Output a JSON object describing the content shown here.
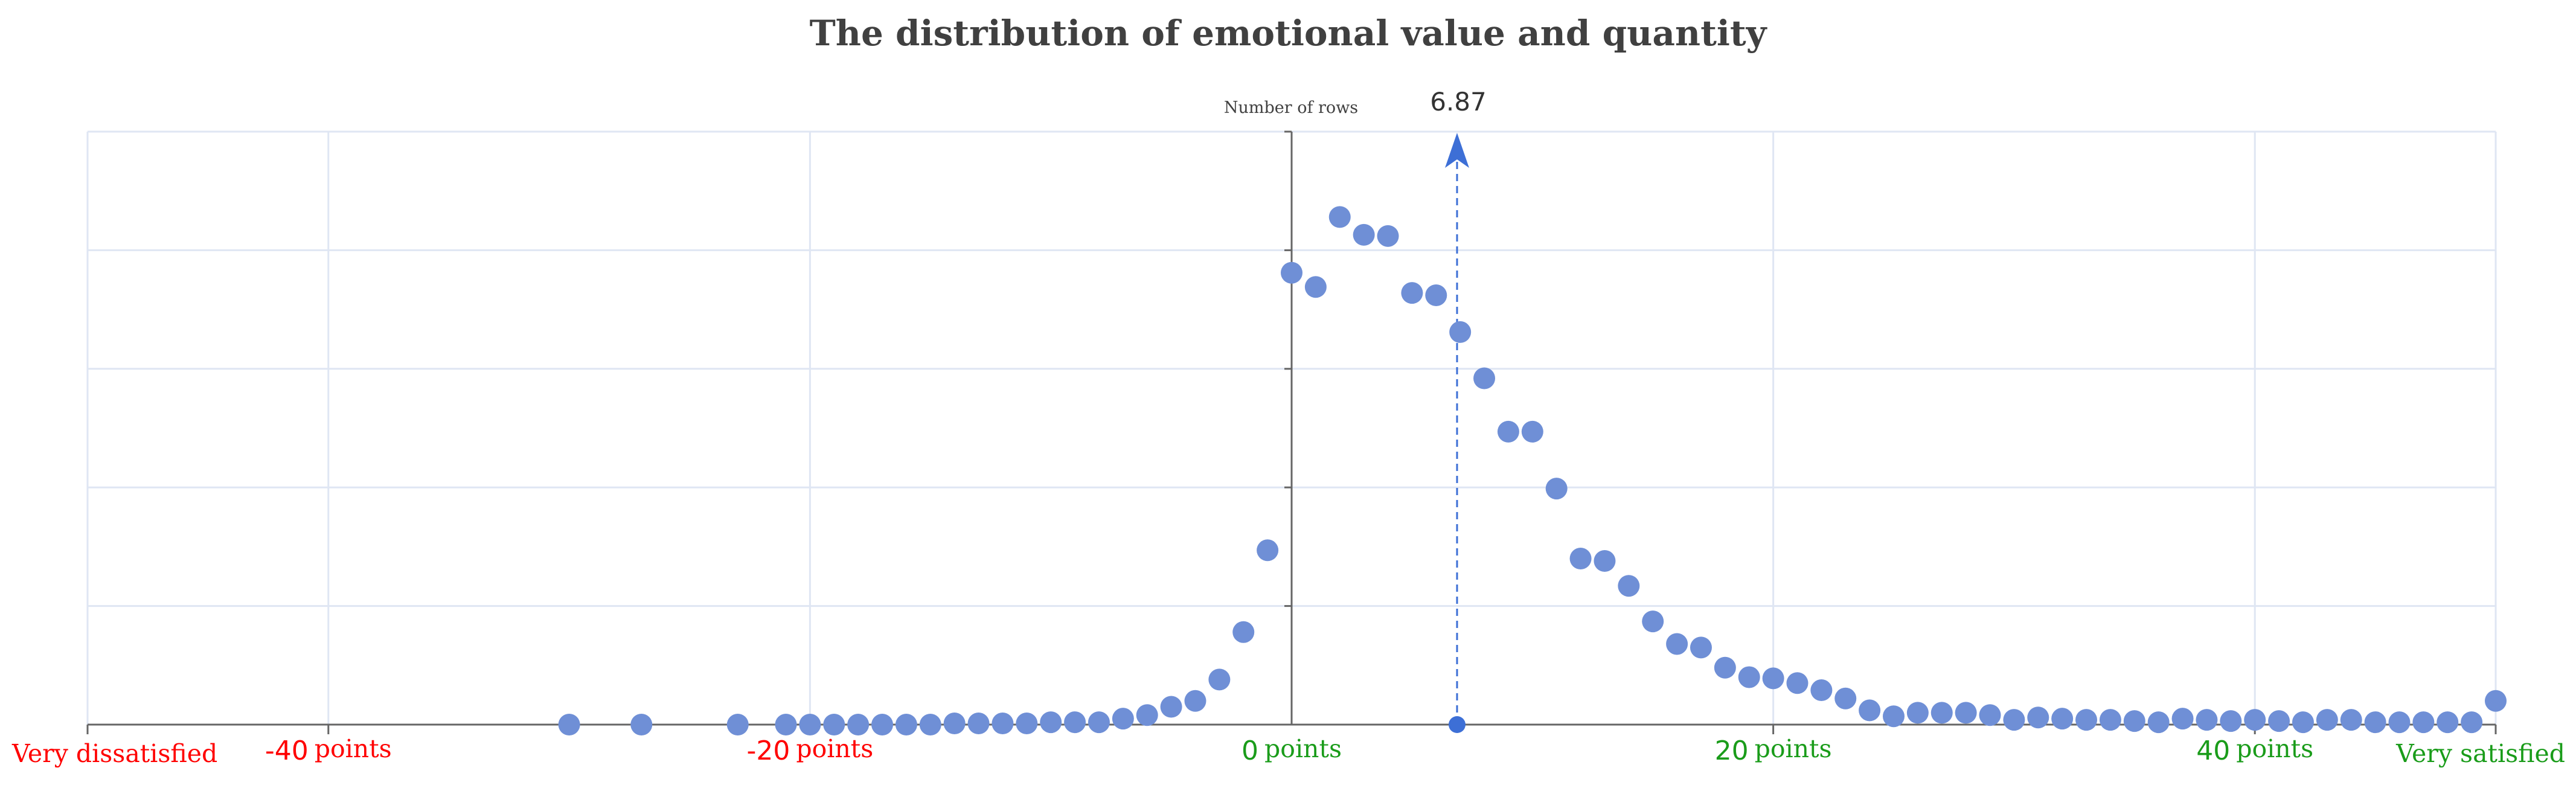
{
  "chart_data": {
    "type": "scatter",
    "title": "The distribution of emotional value and quantity",
    "ylabel": "Number of rows",
    "xlim": [
      -50,
      50
    ],
    "ylim": [
      0,
      5
    ],
    "grid": true,
    "x_ticks": [
      {
        "value": -40,
        "num": "-40",
        "unit": "points"
      },
      {
        "value": -20,
        "num": "-20",
        "unit": "points"
      },
      {
        "value": 0,
        "num": "0",
        "unit": "points"
      },
      {
        "value": 20,
        "num": "20",
        "unit": "points"
      },
      {
        "value": 40,
        "num": "40",
        "unit": "points"
      }
    ],
    "end_labels": {
      "left": "Very dissatisfied",
      "right": "Very satisfied"
    },
    "mean": {
      "value": 6.87,
      "label": "6.87"
    },
    "colors": {
      "points": "#6f8fd6",
      "mean_line": "#3d6fd6",
      "negative": "#ff0000",
      "positive": "#1a9c1a",
      "grid": "#dfe6f3",
      "axis": "#666666"
    },
    "points": [
      {
        "x": -30,
        "y": 0.0
      },
      {
        "x": -27,
        "y": 0.0
      },
      {
        "x": -23,
        "y": 0.0
      },
      {
        "x": -21,
        "y": 0.0
      },
      {
        "x": -20,
        "y": 0.0
      },
      {
        "x": -19,
        "y": 0.0
      },
      {
        "x": -18,
        "y": 0.0
      },
      {
        "x": -17,
        "y": 0.0
      },
      {
        "x": -16,
        "y": 0.0
      },
      {
        "x": -15,
        "y": 0.0
      },
      {
        "x": -14,
        "y": 0.01
      },
      {
        "x": -13,
        "y": 0.01
      },
      {
        "x": -12,
        "y": 0.01
      },
      {
        "x": -11,
        "y": 0.01
      },
      {
        "x": -10,
        "y": 0.02
      },
      {
        "x": -9,
        "y": 0.02
      },
      {
        "x": -8,
        "y": 0.02
      },
      {
        "x": -7,
        "y": 0.05
      },
      {
        "x": -6,
        "y": 0.08
      },
      {
        "x": -5,
        "y": 0.15
      },
      {
        "x": -4,
        "y": 0.2
      },
      {
        "x": -3,
        "y": 0.38
      },
      {
        "x": -2,
        "y": 0.78
      },
      {
        "x": -1,
        "y": 1.47
      },
      {
        "x": 0,
        "y": 3.81
      },
      {
        "x": 1,
        "y": 3.69
      },
      {
        "x": 2,
        "y": 4.28
      },
      {
        "x": 3,
        "y": 4.13
      },
      {
        "x": 4,
        "y": 4.12
      },
      {
        "x": 5,
        "y": 3.64
      },
      {
        "x": 6,
        "y": 3.62
      },
      {
        "x": 7,
        "y": 3.31
      },
      {
        "x": 8,
        "y": 2.92
      },
      {
        "x": 9,
        "y": 2.47
      },
      {
        "x": 10,
        "y": 2.47
      },
      {
        "x": 11,
        "y": 1.99
      },
      {
        "x": 12,
        "y": 1.4
      },
      {
        "x": 13,
        "y": 1.38
      },
      {
        "x": 14,
        "y": 1.17
      },
      {
        "x": 15,
        "y": 0.87
      },
      {
        "x": 16,
        "y": 0.68
      },
      {
        "x": 17,
        "y": 0.65
      },
      {
        "x": 18,
        "y": 0.48
      },
      {
        "x": 19,
        "y": 0.4
      },
      {
        "x": 20,
        "y": 0.39
      },
      {
        "x": 21,
        "y": 0.35
      },
      {
        "x": 22,
        "y": 0.29
      },
      {
        "x": 23,
        "y": 0.22
      },
      {
        "x": 24,
        "y": 0.12
      },
      {
        "x": 25,
        "y": 0.07
      },
      {
        "x": 26,
        "y": 0.1
      },
      {
        "x": 27,
        "y": 0.1
      },
      {
        "x": 28,
        "y": 0.1
      },
      {
        "x": 29,
        "y": 0.08
      },
      {
        "x": 30,
        "y": 0.04
      },
      {
        "x": 31,
        "y": 0.06
      },
      {
        "x": 32,
        "y": 0.05
      },
      {
        "x": 33,
        "y": 0.04
      },
      {
        "x": 34,
        "y": 0.04
      },
      {
        "x": 35,
        "y": 0.03
      },
      {
        "x": 36,
        "y": 0.02
      },
      {
        "x": 37,
        "y": 0.05
      },
      {
        "x": 38,
        "y": 0.04
      },
      {
        "x": 39,
        "y": 0.03
      },
      {
        "x": 40,
        "y": 0.04
      },
      {
        "x": 41,
        "y": 0.03
      },
      {
        "x": 42,
        "y": 0.02
      },
      {
        "x": 43,
        "y": 0.04
      },
      {
        "x": 44,
        "y": 0.04
      },
      {
        "x": 45,
        "y": 0.02
      },
      {
        "x": 46,
        "y": 0.02
      },
      {
        "x": 47,
        "y": 0.02
      },
      {
        "x": 48,
        "y": 0.02
      },
      {
        "x": 49,
        "y": 0.02
      },
      {
        "x": 50,
        "y": 0.2
      }
    ]
  }
}
